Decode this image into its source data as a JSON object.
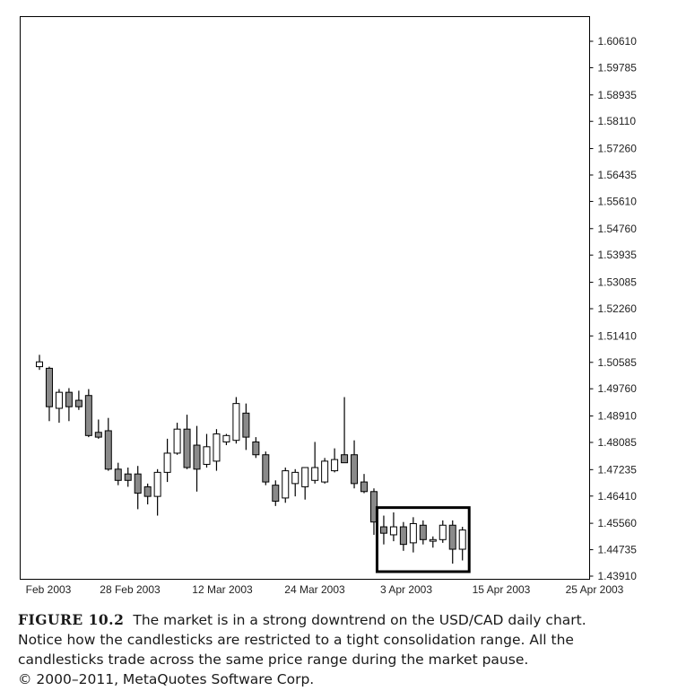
{
  "chart_data": {
    "type": "candlestick",
    "y_ticks": [
      "1.60610",
      "1.59785",
      "1.58935",
      "1.58110",
      "1.57260",
      "1.56435",
      "1.55610",
      "1.54760",
      "1.53935",
      "1.53085",
      "1.52260",
      "1.51410",
      "1.50585",
      "1.49760",
      "1.48910",
      "1.48085",
      "1.47235",
      "1.46410",
      "1.45560",
      "1.44735",
      "1.43910"
    ],
    "ylim": [
      1.4391,
      1.6061
    ],
    "x_labels": [
      "Feb 2003",
      "28 Feb 2003",
      "12 Mar 2003",
      "24 Mar 2003",
      "3 Apr 2003",
      "15 Apr 2003",
      "25 Apr 2003"
    ],
    "candles": [
      {
        "o": 1.5045,
        "h": 1.5082,
        "l": 1.5035,
        "c": 1.506
      },
      {
        "o": 1.504,
        "h": 1.5045,
        "l": 1.4875,
        "c": 1.492
      },
      {
        "o": 1.4915,
        "h": 1.4975,
        "l": 1.487,
        "c": 1.4965
      },
      {
        "o": 1.4965,
        "h": 1.4978,
        "l": 1.4875,
        "c": 1.492
      },
      {
        "o": 1.494,
        "h": 1.497,
        "l": 1.491,
        "c": 1.492
      },
      {
        "o": 1.4955,
        "h": 1.4975,
        "l": 1.4825,
        "c": 1.483
      },
      {
        "o": 1.484,
        "h": 1.488,
        "l": 1.482,
        "c": 1.4825
      },
      {
        "o": 1.4845,
        "h": 1.4885,
        "l": 1.472,
        "c": 1.4725
      },
      {
        "o": 1.4725,
        "h": 1.4745,
        "l": 1.4675,
        "c": 1.469
      },
      {
        "o": 1.471,
        "h": 1.473,
        "l": 1.467,
        "c": 1.469
      },
      {
        "o": 1.471,
        "h": 1.4735,
        "l": 1.46,
        "c": 1.465
      },
      {
        "o": 1.467,
        "h": 1.468,
        "l": 1.4615,
        "c": 1.464
      },
      {
        "o": 1.464,
        "h": 1.4725,
        "l": 1.458,
        "c": 1.4715
      },
      {
        "o": 1.4715,
        "h": 1.482,
        "l": 1.4685,
        "c": 1.4775
      },
      {
        "o": 1.4775,
        "h": 1.487,
        "l": 1.477,
        "c": 1.485
      },
      {
        "o": 1.485,
        "h": 1.4895,
        "l": 1.4725,
        "c": 1.473
      },
      {
        "o": 1.48,
        "h": 1.486,
        "l": 1.4655,
        "c": 1.4725
      },
      {
        "o": 1.474,
        "h": 1.4835,
        "l": 1.473,
        "c": 1.4795
      },
      {
        "o": 1.475,
        "h": 1.485,
        "l": 1.472,
        "c": 1.4835
      },
      {
        "o": 1.481,
        "h": 1.4835,
        "l": 1.48,
        "c": 1.483
      },
      {
        "o": 1.4815,
        "h": 1.495,
        "l": 1.4805,
        "c": 1.493
      },
      {
        "o": 1.49,
        "h": 1.493,
        "l": 1.4785,
        "c": 1.4825
      },
      {
        "o": 1.481,
        "h": 1.4825,
        "l": 1.476,
        "c": 1.477
      },
      {
        "o": 1.477,
        "h": 1.478,
        "l": 1.4675,
        "c": 1.4685
      },
      {
        "o": 1.4675,
        "h": 1.469,
        "l": 1.461,
        "c": 1.4625
      },
      {
        "o": 1.4635,
        "h": 1.473,
        "l": 1.462,
        "c": 1.472
      },
      {
        "o": 1.468,
        "h": 1.4725,
        "l": 1.464,
        "c": 1.4715
      },
      {
        "o": 1.467,
        "h": 1.473,
        "l": 1.463,
        "c": 1.473
      },
      {
        "o": 1.469,
        "h": 1.481,
        "l": 1.468,
        "c": 1.473
      },
      {
        "o": 1.4685,
        "h": 1.476,
        "l": 1.468,
        "c": 1.475
      },
      {
        "o": 1.472,
        "h": 1.479,
        "l": 1.4715,
        "c": 1.4755
      },
      {
        "o": 1.477,
        "h": 1.495,
        "l": 1.475,
        "c": 1.4745
      },
      {
        "o": 1.477,
        "h": 1.4815,
        "l": 1.4665,
        "c": 1.468
      },
      {
        "o": 1.4685,
        "h": 1.471,
        "l": 1.465,
        "c": 1.4655
      },
      {
        "o": 1.4655,
        "h": 1.4665,
        "l": 1.452,
        "c": 1.456
      },
      {
        "o": 1.4545,
        "h": 1.458,
        "l": 1.449,
        "c": 1.4525
      },
      {
        "o": 1.452,
        "h": 1.459,
        "l": 1.45,
        "c": 1.4545
      },
      {
        "o": 1.4545,
        "h": 1.456,
        "l": 1.447,
        "c": 1.449
      },
      {
        "o": 1.4495,
        "h": 1.4575,
        "l": 1.4465,
        "c": 1.4555
      },
      {
        "o": 1.455,
        "h": 1.4565,
        "l": 1.449,
        "c": 1.4505
      },
      {
        "o": 1.45,
        "h": 1.4515,
        "l": 1.448,
        "c": 1.4505
      },
      {
        "o": 1.4505,
        "h": 1.4565,
        "l": 1.4495,
        "c": 1.455
      },
      {
        "o": 1.455,
        "h": 1.4565,
        "l": 1.443,
        "c": 1.4475
      },
      {
        "o": 1.4475,
        "h": 1.4545,
        "l": 1.444,
        "c": 1.4535
      }
    ],
    "consolidation_box": {
      "start_index": 35,
      "end_index": 43,
      "low": 1.4405,
      "high": 1.4605
    }
  },
  "caption": {
    "label": "FIGURE 10.2",
    "lines": [
      "The market is in a strong downtrend on the USD/CAD daily chart.",
      "Notice how the candlesticks are restricted to a tight consolidation range. All the",
      "candlesticks trade across the same price range during the market pause.",
      "© 2000–2011, MetaQuotes Software Corp."
    ]
  }
}
